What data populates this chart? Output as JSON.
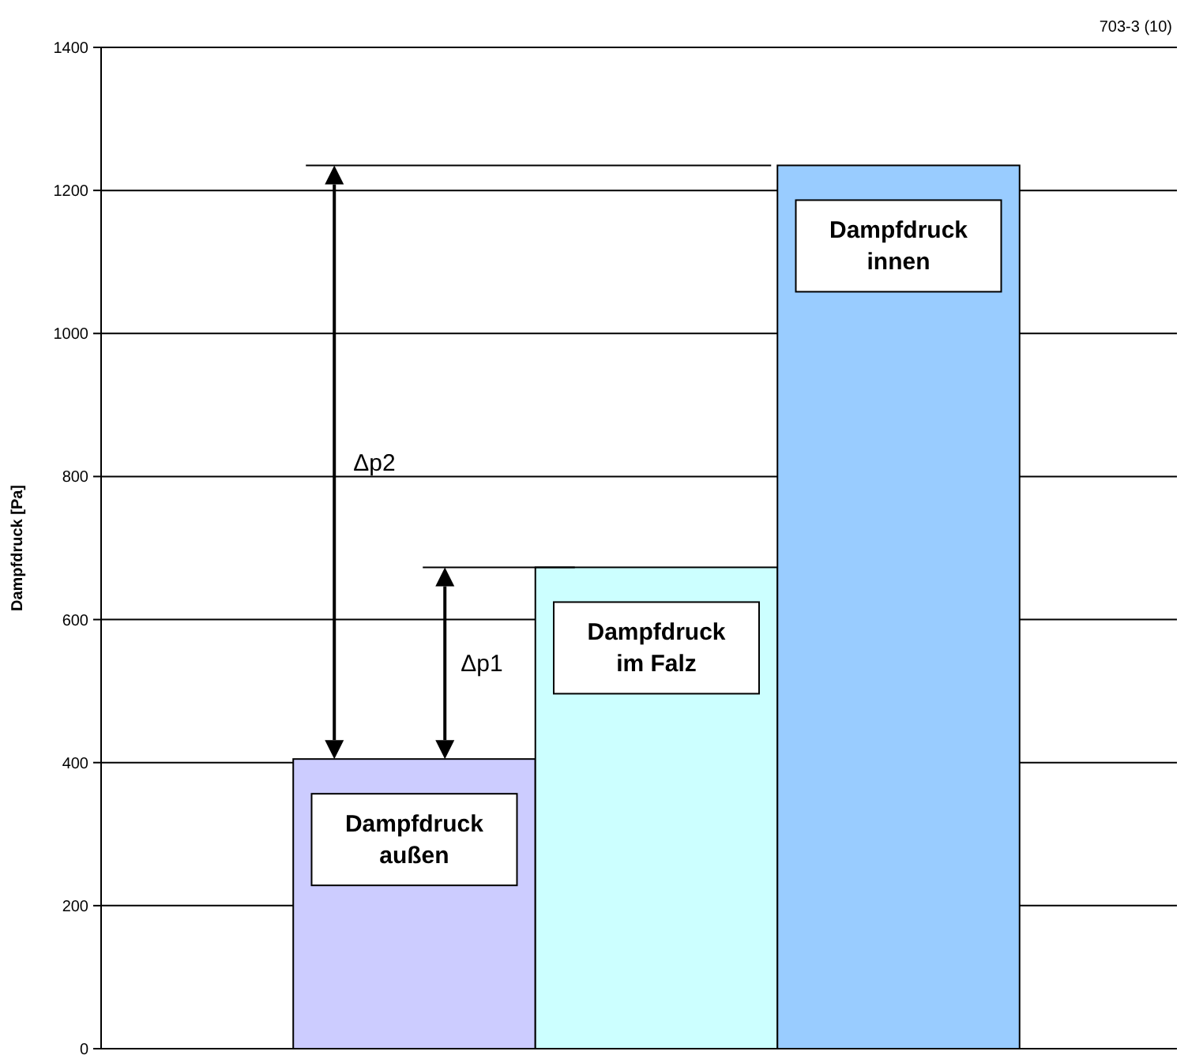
{
  "chart_data": {
    "type": "bar",
    "categories": [
      null,
      null,
      null
    ],
    "values": [
      405,
      673,
      1235
    ],
    "colors": [
      "#ccccff",
      "#ccffff",
      "#99ccff"
    ],
    "ylabel": "Dampfdruck [Pa]",
    "ylim": [
      0,
      1400
    ],
    "yticks": [
      0,
      200,
      400,
      600,
      800,
      1000,
      1200,
      1400
    ],
    "grid": "y",
    "ref_lines": [
      {
        "axis": "y",
        "value": 1235
      },
      {
        "axis": "y",
        "value": 673
      }
    ],
    "annotations": [
      "Dampfdruck außen",
      "Dampfdruck im Falz",
      "Dampfdruck innen",
      "Δp1",
      "Δp2",
      "703-3 (10)"
    ]
  }
}
